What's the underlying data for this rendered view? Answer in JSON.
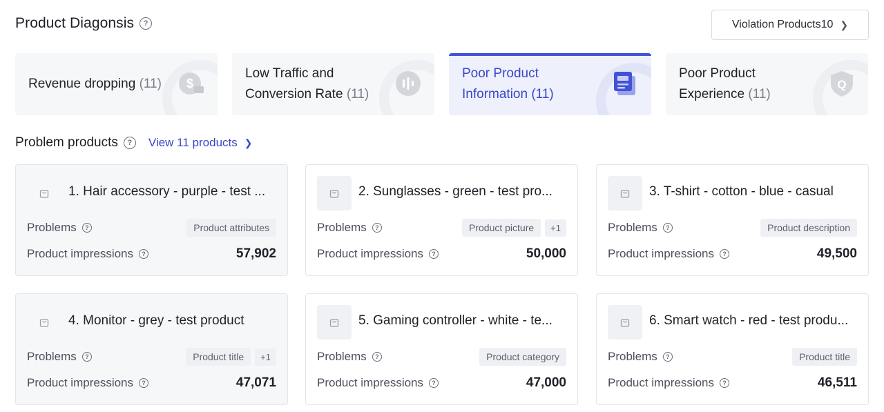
{
  "header": {
    "title": "Product Diagonsis",
    "violation_label": "Violation Products10"
  },
  "categories": [
    {
      "line1": "Revenue dropping",
      "line2": "",
      "count": "(11)",
      "icon": "dollar-icon"
    },
    {
      "line1": "Low Traffic and",
      "line2": "Conversion Rate",
      "count": "(11)",
      "icon": "traffic-icon"
    },
    {
      "line1": "Poor Product",
      "line2": "Information",
      "count": "(11)",
      "icon": "document-icon",
      "active": true
    },
    {
      "line1": "Poor Product",
      "line2": "Experience",
      "count": "(11)",
      "icon": "shield-icon"
    }
  ],
  "problems": {
    "title": "Problem products",
    "view_label": "View 11 products"
  },
  "labels": {
    "problems": "Problems",
    "impressions": "Product impressions"
  },
  "products": [
    {
      "title": "1. Hair accessory - purple - test ...",
      "tag": "Product attributes",
      "extra": "",
      "impressions": "57,902"
    },
    {
      "title": "2. Sunglasses - green - test pro...",
      "tag": "Product picture",
      "extra": "+1",
      "impressions": "50,000"
    },
    {
      "title": "3. T-shirt - cotton - blue - casual",
      "tag": "Product description",
      "extra": "",
      "impressions": "49,500"
    },
    {
      "title": "4. Monitor - grey - test product",
      "tag": "Product title",
      "extra": "+1",
      "impressions": "47,071"
    },
    {
      "title": "5. Gaming controller - white - te...",
      "tag": "Product category",
      "extra": "",
      "impressions": "47,000"
    },
    {
      "title": "6. Smart watch - red - test produ...",
      "tag": "Product title",
      "extra": "",
      "impressions": "46,511"
    }
  ],
  "colors": {
    "accent": "#3a46c9",
    "active_bar": "#4252d6"
  }
}
